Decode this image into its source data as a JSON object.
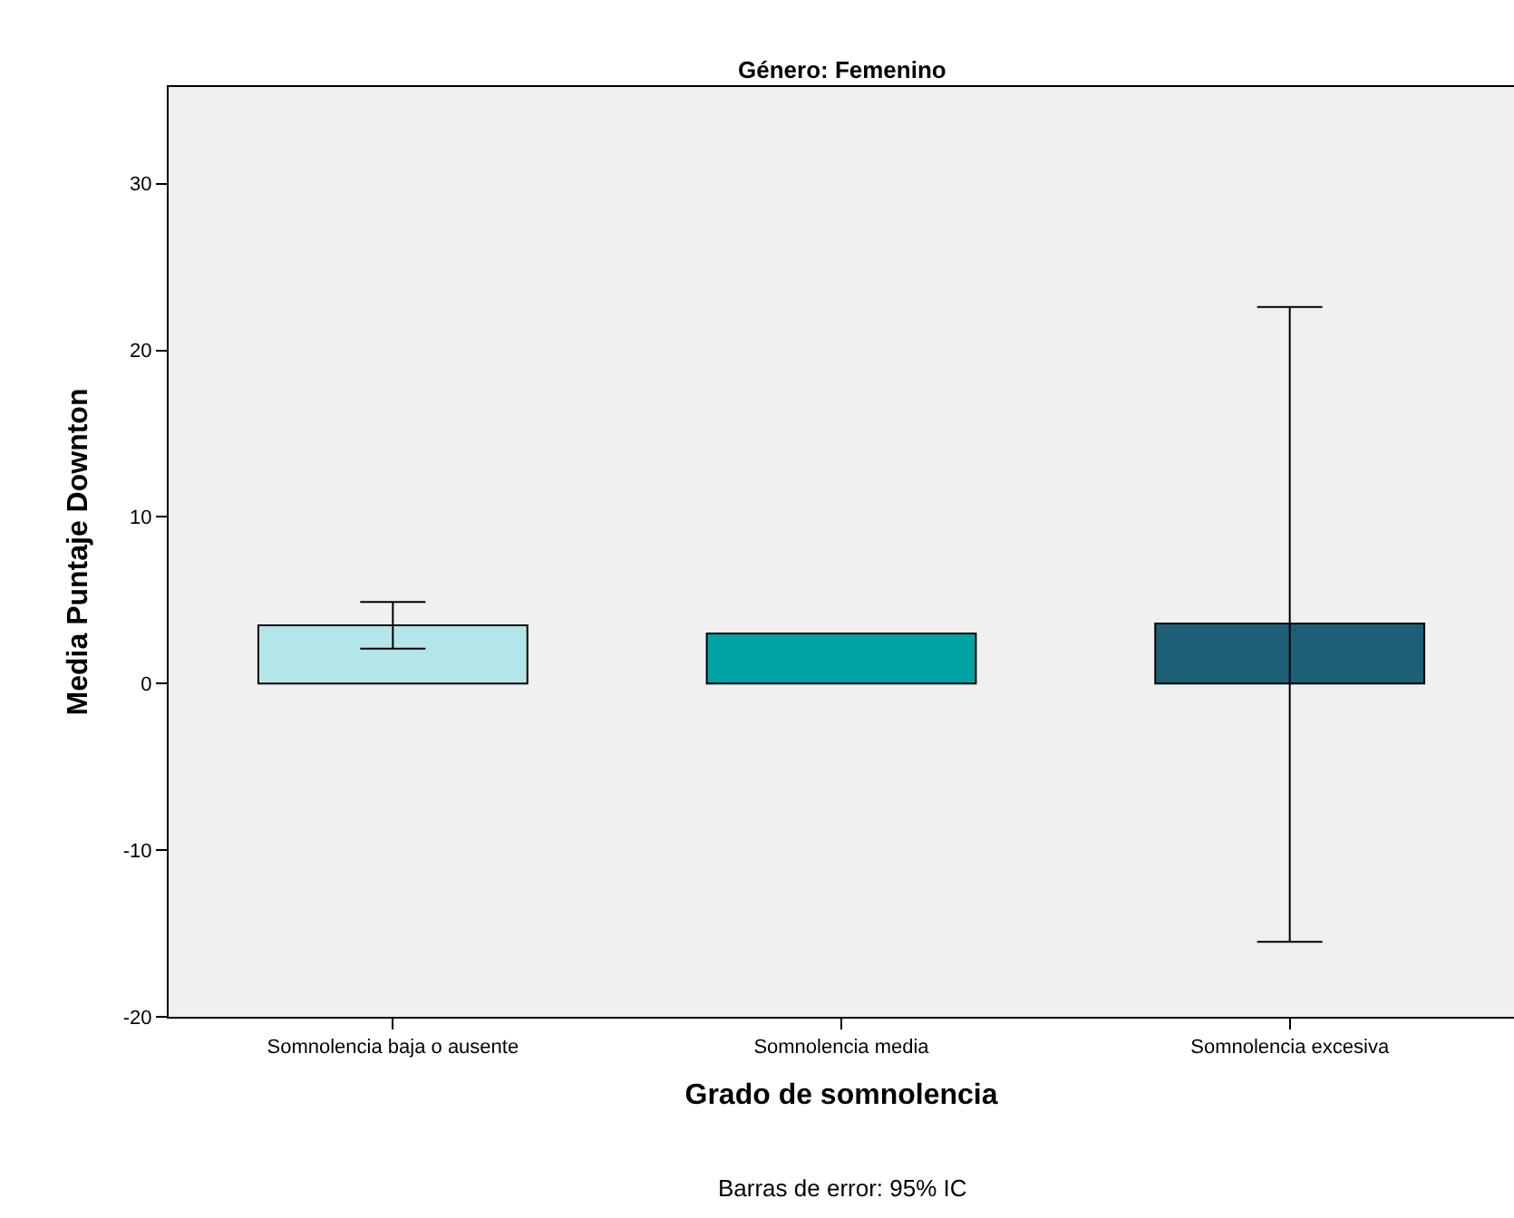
{
  "chart_data": {
    "type": "bar",
    "title": "Género: Femenino",
    "xlabel": "Grado de somnolencia",
    "ylabel": "Media Puntaje Downton",
    "categories": [
      "Somnolencia baja o ausente",
      "Somnolencia media",
      "Somnolencia excesiva"
    ],
    "values": [
      3.5,
      3.0,
      3.6
    ],
    "colors": [
      "#b3e6e8",
      "#00a3a3",
      "#1d5f76"
    ],
    "errors": [
      [
        2.1,
        4.9
      ],
      null,
      [
        -15.5,
        22.6
      ]
    ],
    "ylim": [
      -20,
      35.8
    ],
    "yticks": [
      -20,
      -10,
      0,
      10,
      20,
      30
    ],
    "grid": false,
    "legend": false,
    "annotations": [
      "Barras de error: 95% IC"
    ]
  }
}
